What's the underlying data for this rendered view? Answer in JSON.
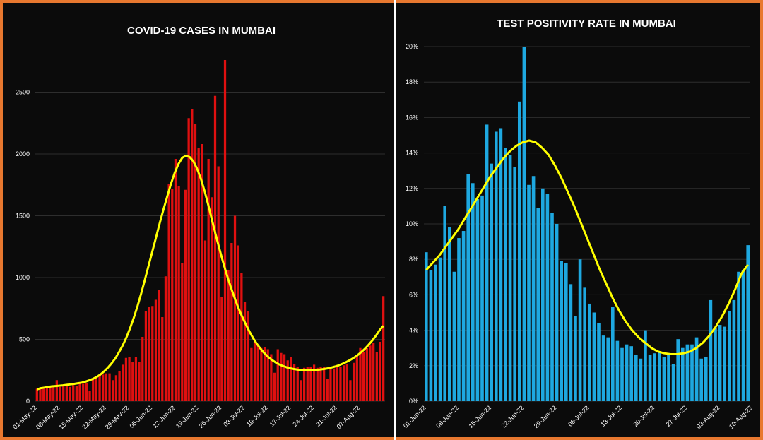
{
  "colors": {
    "border": "#e8782f",
    "background": "#0b0b0b",
    "divider": "#ffffff",
    "cases_bar": "#e01010",
    "tpr_bar": "#1ea8e0",
    "trend": "#ffff00"
  },
  "chart_data": [
    {
      "type": "bar",
      "title": "COVID-19 CASES IN MUMBAI",
      "xlabel": "",
      "ylabel": "",
      "ylim": [
        0,
        2800
      ],
      "yticks": [
        0,
        500,
        1000,
        1500,
        2000,
        2500
      ],
      "ytick_labels": [
        "0",
        "500",
        "1000",
        "1500",
        "2000",
        "2500"
      ],
      "xtick_labels": [
        "01-May-22",
        "08-May-22",
        "15-May-22",
        "22-May-22",
        "29-May-22",
        "05-Jun-22",
        "12-Jun-22",
        "19-Jun-22",
        "26-Jun-22",
        "03-Jul-22",
        "10-Jul-22",
        "17-Jul-22",
        "24-Jul-22",
        "31-Jul-22",
        "07-Aug-22"
      ],
      "x_start": "01-May-22",
      "grid": true,
      "values": [
        100,
        110,
        100,
        110,
        120,
        115,
        170,
        115,
        125,
        120,
        115,
        130,
        120,
        150,
        140,
        145,
        85,
        180,
        185,
        215,
        215,
        225,
        225,
        170,
        210,
        240,
        295,
        350,
        360,
        320,
        360,
        315,
        520,
        730,
        760,
        770,
        820,
        900,
        680,
        1010,
        1760,
        1720,
        1960,
        1740,
        1120,
        1710,
        2290,
        2360,
        2240,
        2050,
        2080,
        1300,
        1960,
        1650,
        2470,
        1900,
        840,
        2760,
        1060,
        1280,
        1500,
        1260,
        1040,
        800,
        730,
        430,
        480,
        460,
        430,
        440,
        420,
        380,
        230,
        420,
        390,
        380,
        330,
        360,
        300,
        280,
        170,
        270,
        280,
        280,
        295,
        270,
        280,
        280,
        180,
        260,
        265,
        280,
        275,
        290,
        300,
        170,
        310,
        370,
        430,
        400,
        430,
        450,
        470,
        400,
        480,
        850
      ],
      "series": [
        {
          "type": "line",
          "values": [
            95,
            105,
            110,
            115,
            120,
            122,
            125,
            128,
            132,
            136,
            140,
            145,
            150,
            158,
            168,
            180,
            195,
            215,
            240,
            270,
            305,
            345,
            395,
            450,
            515,
            590,
            675,
            770,
            875,
            985,
            1100,
            1215,
            1330,
            1445,
            1555,
            1660,
            1760,
            1850,
            1920,
            1970,
            1985,
            1975,
            1940,
            1880,
            1800,
            1700,
            1585,
            1465,
            1345,
            1230,
            1120,
            1020,
            925,
            840,
            760,
            690,
            625,
            565,
            512,
            465,
            425,
            390,
            360,
            335,
            315,
            298,
            285,
            274,
            266,
            260,
            255,
            252,
            250,
            250,
            251,
            253,
            256,
            260,
            265,
            272,
            280,
            290,
            302,
            316,
            332,
            350,
            371,
            395,
            423,
            455,
            490,
            530,
            575,
            610
          ]
        }
      ]
    },
    {
      "type": "bar",
      "title": "TEST POSITIVITY RATE IN MUMBAI",
      "xlabel": "",
      "ylabel": "",
      "ylim": [
        0,
        20
      ],
      "yticks": [
        0,
        2,
        4,
        6,
        8,
        10,
        12,
        14,
        16,
        18,
        20
      ],
      "ytick_labels": [
        "0%",
        "2%",
        "4%",
        "6%",
        "8%",
        "10%",
        "12%",
        "14%",
        "16%",
        "18%",
        "20%"
      ],
      "xtick_labels": [
        "01-Jun-22",
        "08-Jun-22",
        "15-Jun-22",
        "22-Jun-22",
        "29-Jun-22",
        "06-Jul-22",
        "13-Jul-22",
        "20-Jul-22",
        "27-Jul-22",
        "03-Aug-22",
        "10-Aug-22"
      ],
      "x_start": "01-Jun-22",
      "grid": true,
      "values": [
        8.4,
        7.4,
        7.7,
        8.1,
        11.0,
        9.8,
        7.3,
        9.2,
        9.6,
        12.8,
        12.3,
        11.4,
        11.6,
        15.6,
        13.4,
        15.2,
        15.4,
        14.3,
        13.9,
        13.2,
        16.9,
        20.0,
        12.2,
        12.7,
        10.9,
        12.0,
        11.7,
        10.6,
        10.0,
        7.9,
        7.8,
        6.6,
        4.8,
        8.0,
        6.4,
        5.5,
        5.0,
        4.4,
        3.7,
        3.6,
        5.3,
        3.4,
        3.0,
        3.2,
        3.1,
        2.6,
        2.4,
        4.0,
        2.6,
        2.7,
        2.8,
        2.5,
        2.6,
        2.1,
        3.5,
        3.0,
        3.2,
        3.2,
        3.6,
        2.4,
        2.5,
        5.7,
        4.1,
        4.3,
        4.2,
        5.1,
        5.7,
        7.3,
        7.4,
        8.8
      ],
      "series": [
        {
          "type": "line",
          "values": [
            7.4,
            7.8,
            8.2,
            8.7,
            9.2,
            9.7,
            10.3,
            10.9,
            11.5,
            12.1,
            12.7,
            13.2,
            13.7,
            14.1,
            14.4,
            14.6,
            14.7,
            14.6,
            14.3,
            13.9,
            13.3,
            12.6,
            11.8,
            11.0,
            10.1,
            9.2,
            8.3,
            7.4,
            6.6,
            5.8,
            5.1,
            4.5,
            4.0,
            3.6,
            3.3,
            3.0,
            2.8,
            2.7,
            2.65,
            2.65,
            2.7,
            2.8,
            3.0,
            3.3,
            3.7,
            4.2,
            4.8,
            5.5,
            6.3,
            7.2,
            7.7
          ]
        }
      ]
    }
  ]
}
